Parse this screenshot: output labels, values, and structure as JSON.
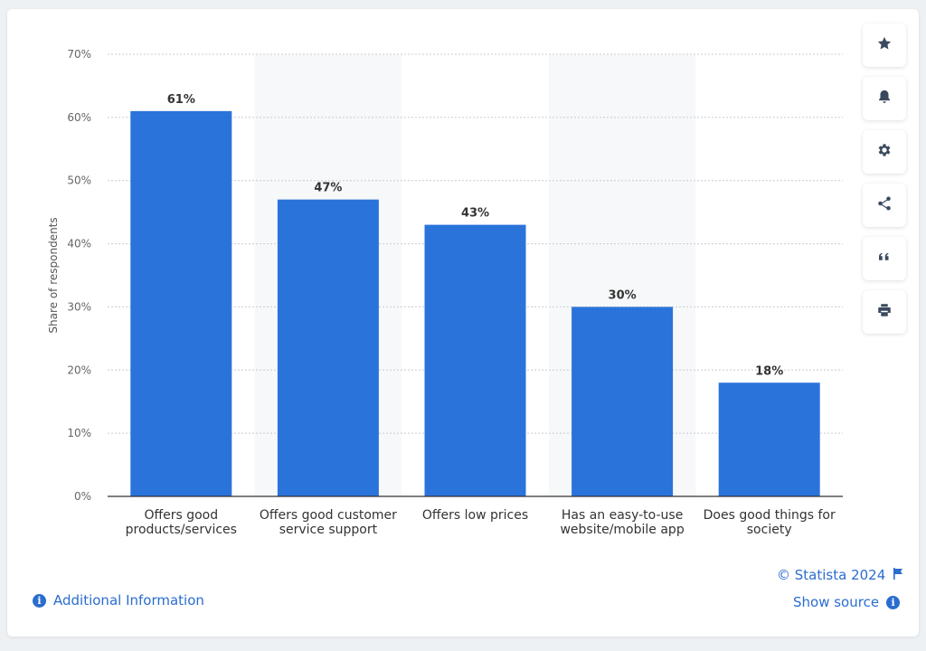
{
  "chart_data": {
    "type": "bar",
    "categories": [
      [
        "Offers good",
        "products/services"
      ],
      [
        "Offers good customer",
        "service support"
      ],
      [
        "Offers low prices"
      ],
      [
        "Has an easy-to-use",
        "website/mobile app"
      ],
      [
        "Does good things for",
        "society"
      ]
    ],
    "values": [
      61,
      47,
      43,
      30,
      18
    ],
    "value_labels": [
      "61%",
      "47%",
      "43%",
      "30%",
      "18%"
    ],
    "ylabel": "Share of respondents",
    "yticks": [
      "0%",
      "10%",
      "20%",
      "30%",
      "40%",
      "50%",
      "60%",
      "70%"
    ],
    "ylim": [
      0,
      70
    ],
    "bar_color": "#2a73db",
    "grid": true
  },
  "toolbar": {
    "buttons": [
      "star-icon",
      "bell-icon",
      "gear-icon",
      "share-icon",
      "quote-icon",
      "print-icon"
    ]
  },
  "footer": {
    "copyright": "© Statista 2024",
    "show_source": "Show source",
    "additional_info": "Additional Information"
  }
}
